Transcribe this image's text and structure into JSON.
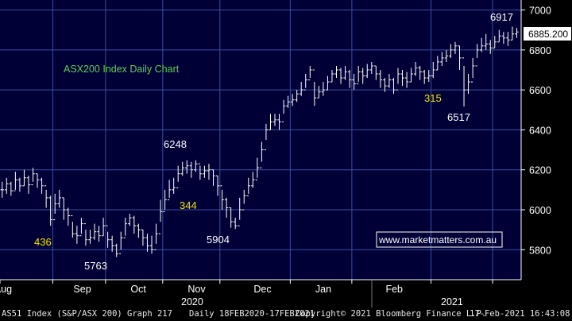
{
  "chart_data": {
    "type": "ohlc",
    "title": "ASX200 Index Daily Chart",
    "watermark": "www.marketmatters.com.au",
    "current_price_label": "6885.200",
    "ylim": [
      5650,
      7050
    ],
    "yticks": [
      5800,
      6000,
      6200,
      6400,
      6600,
      6800,
      7000
    ],
    "month_labels": [
      "Aug",
      "Sep",
      "Oct",
      "Nov",
      "Dec",
      "Jan",
      "Feb"
    ],
    "year_labels": [
      "2020",
      "2021"
    ],
    "annotations": {
      "peaks_troughs": [
        "6917",
        "6248",
        "5904",
        "5763",
        "6517"
      ],
      "moves": [
        "436",
        "344",
        "315"
      ]
    },
    "colors": {
      "background": "#000036",
      "grid": "#3a4fa0",
      "bars": "#ffffff",
      "title_text": "#5dd14a",
      "move_text": "#f2e400",
      "watermark_text": "#ffffff",
      "watermark_border": "#ffffff"
    },
    "series": [
      {
        "close": [
          6100,
          6130,
          6095,
          6150,
          6120,
          6160,
          6125,
          6180,
          6150,
          6120,
          6060,
          5950,
          6030,
          6060,
          6000,
          5970,
          5880,
          5870,
          5930,
          5850,
          5860,
          5890,
          5870,
          5920,
          5850,
          5820,
          5780,
          5860,
          5930,
          5960,
          5920,
          5900,
          5860,
          5820,
          5800,
          5880,
          5990,
          6050,
          6100,
          6110,
          6180,
          6210,
          6220,
          6200,
          6230,
          6180,
          6195,
          6200,
          6170,
          6120,
          6050,
          6010,
          5940,
          5920,
          6000,
          6070,
          6120,
          6150,
          6210,
          6300,
          6400,
          6440,
          6450,
          6440,
          6520,
          6540,
          6550,
          6580,
          6600,
          6650,
          6700,
          6560,
          6590,
          6600,
          6640,
          6680,
          6700,
          6660,
          6690,
          6650,
          6630,
          6690,
          6670,
          6700,
          6720,
          6680,
          6650,
          6620,
          6650,
          6600,
          6680,
          6660,
          6640,
          6680,
          6710,
          6690,
          6660,
          6670,
          6700,
          6740,
          6760,
          6770,
          6800,
          6820,
          6760,
          6600,
          6640,
          6720,
          6800,
          6820,
          6830,
          6810,
          6840,
          6870,
          6860,
          6850,
          6880,
          6890
        ],
        "high": [
          6140,
          6160,
          6140,
          6190,
          6160,
          6200,
          6170,
          6210,
          6180,
          6160,
          6100,
          6070,
          6080,
          6100,
          6060,
          6010,
          5940,
          5920,
          5960,
          5900,
          5900,
          5930,
          5920,
          5960,
          5890,
          5870,
          5830,
          5890,
          5960,
          5980,
          5970,
          5930,
          5900,
          5880,
          5870,
          5930,
          6050,
          6100,
          6150,
          6160,
          6220,
          6240,
          6248,
          6240,
          6248,
          6220,
          6220,
          6230,
          6200,
          6170,
          6100,
          6060,
          6010,
          5960,
          6060,
          6100,
          6160,
          6190,
          6260,
          6340,
          6430,
          6480,
          6480,
          6480,
          6550,
          6570,
          6580,
          6600,
          6640,
          6680,
          6720,
          6640,
          6620,
          6640,
          6670,
          6700,
          6720,
          6710,
          6720,
          6700,
          6680,
          6720,
          6710,
          6730,
          6740,
          6720,
          6700,
          6660,
          6680,
          6660,
          6710,
          6700,
          6690,
          6710,
          6740,
          6720,
          6700,
          6700,
          6740,
          6770,
          6790,
          6800,
          6830,
          6840,
          6820,
          6720,
          6680,
          6760,
          6830,
          6860,
          6880,
          6850,
          6870,
          6900,
          6890,
          6890,
          6917,
          6910
        ],
        "low": [
          6060,
          6080,
          6070,
          6100,
          6090,
          6120,
          6080,
          6140,
          6110,
          6080,
          6010,
          5920,
          5980,
          6010,
          5950,
          5920,
          5860,
          5830,
          5880,
          5820,
          5830,
          5850,
          5840,
          5870,
          5810,
          5790,
          5763,
          5800,
          5870,
          5920,
          5880,
          5860,
          5820,
          5790,
          5780,
          5830,
          5940,
          6000,
          6060,
          6080,
          6140,
          6170,
          6180,
          6160,
          6190,
          6150,
          6160,
          6150,
          6120,
          6070,
          6000,
          5960,
          5910,
          5904,
          5950,
          6030,
          6080,
          6110,
          6160,
          6240,
          6350,
          6400,
          6420,
          6400,
          6480,
          6510,
          6520,
          6540,
          6570,
          6610,
          6660,
          6520,
          6560,
          6570,
          6600,
          6640,
          6660,
          6630,
          6650,
          6610,
          6600,
          6640,
          6630,
          6660,
          6680,
          6650,
          6610,
          6590,
          6610,
          6580,
          6630,
          6620,
          6610,
          6640,
          6670,
          6650,
          6630,
          6640,
          6660,
          6700,
          6720,
          6740,
          6760,
          6780,
          6700,
          6517,
          6580,
          6660,
          6760,
          6790,
          6800,
          6780,
          6810,
          6840,
          6830,
          6820,
          6850,
          6860
        ]
      }
    ]
  },
  "footer": {
    "left": "AS51 Index (S&P/ASX 200) Graph 217",
    "period": "Daily 18FEB2020-17FEB2021",
    "copyright": "Copyright© 2021 Bloomberg Finance L.P.",
    "timestamp": "17-Feb-2021 16:43:08"
  }
}
